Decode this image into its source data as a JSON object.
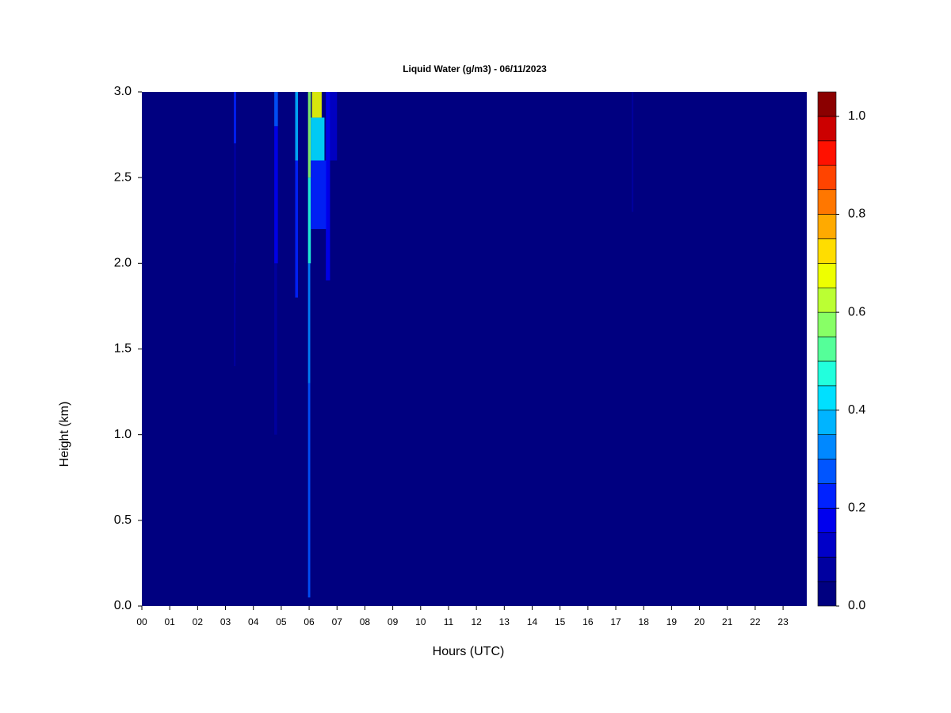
{
  "chart_data": {
    "type": "heatmap",
    "title": "Liquid Water (g/m3) - 06/11/2023",
    "xlabel": "Hours (UTC)",
    "ylabel": "Height (km)",
    "xlim": [
      0,
      23.85
    ],
    "ylim": [
      0,
      3
    ],
    "xticks": [
      {
        "value": 0,
        "label": "00"
      },
      {
        "value": 1,
        "label": "01"
      },
      {
        "value": 2,
        "label": "02"
      },
      {
        "value": 3,
        "label": "03"
      },
      {
        "value": 4,
        "label": "04"
      },
      {
        "value": 5,
        "label": "05"
      },
      {
        "value": 6,
        "label": "06"
      },
      {
        "value": 7,
        "label": "07"
      },
      {
        "value": 8,
        "label": "08"
      },
      {
        "value": 9,
        "label": "09"
      },
      {
        "value": 10,
        "label": "10"
      },
      {
        "value": 11,
        "label": "11"
      },
      {
        "value": 12,
        "label": "12"
      },
      {
        "value": 13,
        "label": "13"
      },
      {
        "value": 14,
        "label": "14"
      },
      {
        "value": 15,
        "label": "15"
      },
      {
        "value": 16,
        "label": "16"
      },
      {
        "value": 17,
        "label": "17"
      },
      {
        "value": 18,
        "label": "18"
      },
      {
        "value": 19,
        "label": "19"
      },
      {
        "value": 20,
        "label": "20"
      },
      {
        "value": 21,
        "label": "21"
      },
      {
        "value": 22,
        "label": "22"
      },
      {
        "value": 23,
        "label": "23"
      }
    ],
    "yticks": [
      {
        "value": 0,
        "label": "0.0"
      },
      {
        "value": 0.5,
        "label": "0.5"
      },
      {
        "value": 1,
        "label": "1.0"
      },
      {
        "value": 1.5,
        "label": "1.5"
      },
      {
        "value": 2,
        "label": "2.0"
      },
      {
        "value": 2.5,
        "label": "2.5"
      },
      {
        "value": 3,
        "label": "3.0"
      }
    ],
    "levels": [
      0,
      0.05,
      0.1,
      0.15,
      0.2,
      0.25,
      0.3,
      0.35,
      0.4,
      0.45,
      0.5,
      0.55,
      0.6,
      0.65,
      0.7,
      0.75,
      0.8,
      0.85,
      0.9,
      0.95,
      1.0,
      1.05
    ],
    "colors": [
      "#000080",
      "#0000a0",
      "#0000c8",
      "#0000ee",
      "#0022ff",
      "#0055ff",
      "#0088ff",
      "#00b4ff",
      "#00e0ff",
      "#22ffdd",
      "#55ff99",
      "#88ff66",
      "#bbff33",
      "#eeff00",
      "#ffdd00",
      "#ffaa00",
      "#ff7700",
      "#ff4400",
      "#ff1100",
      "#cc0000",
      "#8b0000"
    ],
    "colorbar_lim": [
      0,
      1.05
    ],
    "colorbar_ticks": [
      {
        "value": 0,
        "label": "0.0"
      },
      {
        "value": 0.2,
        "label": "0.2"
      },
      {
        "value": 0.4,
        "label": "0.4"
      },
      {
        "value": 0.6,
        "label": "0.6"
      },
      {
        "value": 0.8,
        "label": "0.8"
      },
      {
        "value": 1,
        "label": "1.0"
      }
    ],
    "cells": [
      {
        "x": [
          3.3,
          3.38
        ],
        "y": [
          2.0,
          2.7
        ],
        "value": 0.08
      },
      {
        "x": [
          3.3,
          3.38
        ],
        "y": [
          2.7,
          3.0
        ],
        "value": 0.2
      },
      {
        "x": [
          3.3,
          3.36
        ],
        "y": [
          1.4,
          2.0
        ],
        "value": 0.06
      },
      {
        "x": [
          4.75,
          4.85
        ],
        "y": [
          1.0,
          2.0
        ],
        "value": 0.07
      },
      {
        "x": [
          4.75,
          4.88
        ],
        "y": [
          2.0,
          2.8
        ],
        "value": 0.15
      },
      {
        "x": [
          4.75,
          4.88
        ],
        "y": [
          2.8,
          3.0
        ],
        "value": 0.25
      },
      {
        "x": [
          5.5,
          5.6
        ],
        "y": [
          1.8,
          2.6
        ],
        "value": 0.2
      },
      {
        "x": [
          5.5,
          5.6
        ],
        "y": [
          2.6,
          3.0
        ],
        "value": 0.35
      },
      {
        "x": [
          5.96,
          6.04
        ],
        "y": [
          0.05,
          1.3
        ],
        "value": 0.25
      },
      {
        "x": [
          5.96,
          6.04
        ],
        "y": [
          1.3,
          2.0
        ],
        "value": 0.3
      },
      {
        "x": [
          5.96,
          6.06
        ],
        "y": [
          2.0,
          2.5
        ],
        "value": 0.45
      },
      {
        "x": [
          5.96,
          6.06
        ],
        "y": [
          2.5,
          3.0
        ],
        "value": 0.55
      },
      {
        "x": [
          6.06,
          6.65
        ],
        "y": [
          2.2,
          2.6
        ],
        "value": 0.2
      },
      {
        "x": [
          6.06,
          6.55
        ],
        "y": [
          2.6,
          2.85
        ],
        "value": 0.4
      },
      {
        "x": [
          6.1,
          6.45
        ],
        "y": [
          2.85,
          3.0
        ],
        "value": 0.65
      },
      {
        "x": [
          6.6,
          6.75
        ],
        "y": [
          1.9,
          3.0
        ],
        "value": 0.15
      },
      {
        "x": [
          6.75,
          7.0
        ],
        "y": [
          2.6,
          3.0
        ],
        "value": 0.1
      },
      {
        "x": [
          17.57,
          17.63
        ],
        "y": [
          2.3,
          3.0
        ],
        "value": 0.06
      }
    ]
  }
}
